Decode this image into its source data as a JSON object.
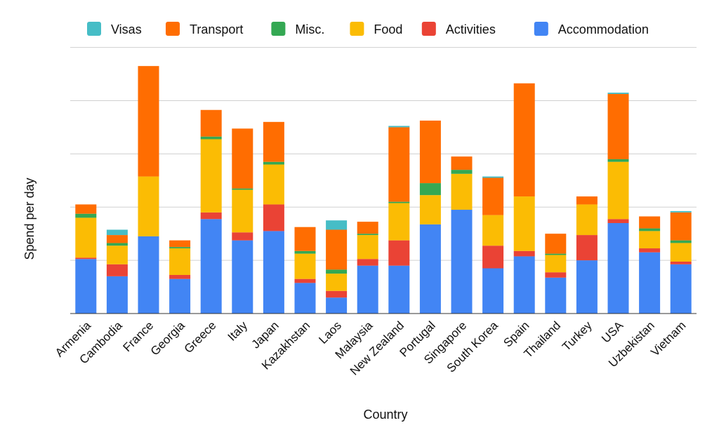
{
  "chart_data": {
    "type": "bar",
    "stacked": true,
    "xlabel": "Country",
    "ylabel": "Spend per day",
    "ylim": [
      0,
      102
    ],
    "y_ticks": [
      0,
      20,
      40,
      60,
      80,
      100
    ],
    "y_tick_labels_shown": false,
    "grid": true,
    "legend_position": "top",
    "categories": [
      "Armenia",
      "Cambodia",
      "France",
      "Georgia",
      "Greece",
      "Italy",
      "Japan",
      "Kazakhstan",
      "Laos",
      "Malaysia",
      "New Zealand",
      "Portugal",
      "Singapore",
      "South Korea",
      "Spain",
      "Thailand",
      "Turkey",
      "USA",
      "Uzbekistan",
      "Vietnam"
    ],
    "series": [
      {
        "name": "Accommodation",
        "color": "#4285F4",
        "values": [
          20.5,
          14,
          29,
          13,
          35.5,
          27.5,
          31,
          11.5,
          6,
          18,
          18,
          33.5,
          39,
          17,
          21.5,
          13.5,
          20,
          34,
          23,
          18.5
        ]
      },
      {
        "name": "Activities",
        "color": "#EA4335",
        "values": [
          0.5,
          4.5,
          0,
          1.5,
          2.5,
          3,
          10,
          1.5,
          2.5,
          2.5,
          9.5,
          0,
          0,
          8.5,
          2,
          2,
          9.5,
          1.5,
          1.5,
          1
        ]
      },
      {
        "name": "Food",
        "color": "#FBBC04",
        "values": [
          15,
          7,
          22.5,
          10,
          27.5,
          16,
          15,
          9.5,
          6.5,
          9,
          14,
          11,
          13.5,
          11.5,
          20.5,
          6.5,
          11.5,
          21.5,
          6.5,
          7
        ]
      },
      {
        "name": "Misc.",
        "color": "#34A853",
        "values": [
          1.5,
          1,
          0,
          0.5,
          1,
          0.5,
          1,
          1,
          1.5,
          0.5,
          0.5,
          4.5,
          1.5,
          0,
          0,
          0.5,
          0,
          1,
          1,
          1
        ]
      },
      {
        "name": "Transport",
        "color": "#FF6D01",
        "values": [
          3.5,
          3,
          41.5,
          2.5,
          10,
          22.5,
          15,
          9,
          15,
          4.5,
          28,
          23.5,
          5,
          14,
          42.5,
          7.5,
          3,
          24.5,
          4.5,
          10.5
        ]
      },
      {
        "name": "Visas",
        "color": "#46BDC6",
        "values": [
          0,
          2,
          0,
          0,
          0,
          0,
          0,
          0,
          3.5,
          0,
          0.5,
          0,
          0,
          0.5,
          0,
          0,
          0,
          0.5,
          0,
          0.5
        ]
      }
    ],
    "legend_order": [
      "Visas",
      "Transport",
      "Misc.",
      "Food",
      "Activities",
      "Accommodation"
    ]
  }
}
